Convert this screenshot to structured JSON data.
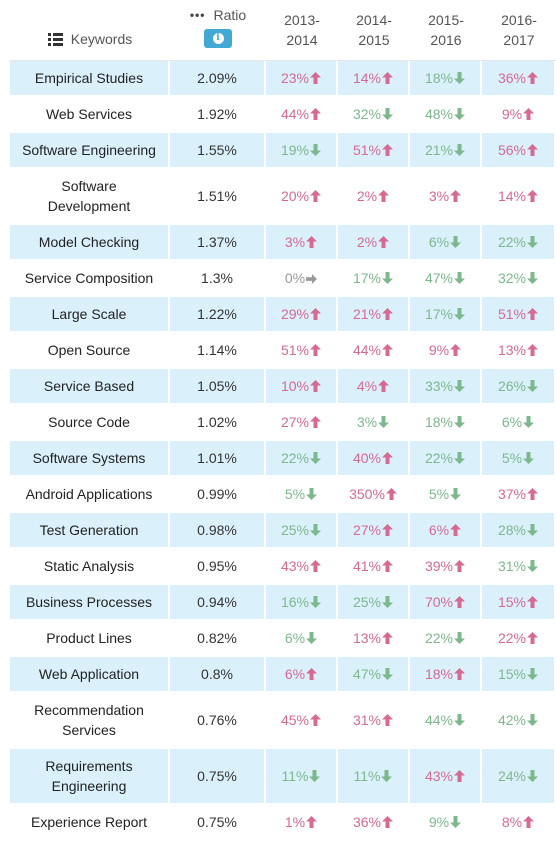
{
  "header": {
    "keywords_label": "Keywords",
    "ratio_label": "Ratio",
    "info_glyph": "i",
    "years": [
      "2013-\n2014",
      "2014-\n2015",
      "2015-\n2016",
      "2016-\n2017"
    ],
    "years_lines": [
      [
        "2013-",
        "2014"
      ],
      [
        "2014-",
        "2015"
      ],
      [
        "2015-",
        "2016"
      ],
      [
        "2016-",
        "2017"
      ]
    ]
  },
  "colors": {
    "row_alt": "#daf0fb",
    "up": "#d66a93",
    "down": "#7db88d",
    "flat": "#999999",
    "badge": "#42a8d4"
  },
  "rows": [
    {
      "kw": [
        "Empirical Studies"
      ],
      "ratio": "2.09%",
      "alt": true,
      "h": 36,
      "c": [
        [
          "23%",
          "up"
        ],
        [
          "14%",
          "up"
        ],
        [
          "18%",
          "down"
        ],
        [
          "36%",
          "up"
        ]
      ]
    },
    {
      "kw": [
        "Web Services"
      ],
      "ratio": "1.92%",
      "alt": false,
      "h": 36,
      "c": [
        [
          "44%",
          "up"
        ],
        [
          "32%",
          "down"
        ],
        [
          "48%",
          "down"
        ],
        [
          "9%",
          "up"
        ]
      ]
    },
    {
      "kw": [
        "Software Engineering"
      ],
      "ratio": "1.55%",
      "alt": true,
      "h": 36,
      "c": [
        [
          "19%",
          "down"
        ],
        [
          "51%",
          "up"
        ],
        [
          "21%",
          "down"
        ],
        [
          "56%",
          "up"
        ]
      ]
    },
    {
      "kw": [
        "Software",
        "Development"
      ],
      "ratio": "1.51%",
      "alt": false,
      "h": 56,
      "c": [
        [
          "20%",
          "up"
        ],
        [
          "2%",
          "up"
        ],
        [
          "3%",
          "up"
        ],
        [
          "14%",
          "up"
        ]
      ]
    },
    {
      "kw": [
        "Model Checking"
      ],
      "ratio": "1.37%",
      "alt": true,
      "h": 36,
      "c": [
        [
          "3%",
          "up"
        ],
        [
          "2%",
          "up"
        ],
        [
          "6%",
          "down"
        ],
        [
          "22%",
          "down"
        ]
      ]
    },
    {
      "kw": [
        "Service Composition"
      ],
      "ratio": "1.3%",
      "alt": false,
      "h": 36,
      "c": [
        [
          "0%",
          "flat"
        ],
        [
          "17%",
          "down"
        ],
        [
          "47%",
          "down"
        ],
        [
          "32%",
          "down"
        ]
      ]
    },
    {
      "kw": [
        "Large Scale"
      ],
      "ratio": "1.22%",
      "alt": true,
      "h": 36,
      "c": [
        [
          "29%",
          "up"
        ],
        [
          "21%",
          "up"
        ],
        [
          "17%",
          "down"
        ],
        [
          "51%",
          "up"
        ]
      ]
    },
    {
      "kw": [
        "Open Source"
      ],
      "ratio": "1.14%",
      "alt": false,
      "h": 36,
      "c": [
        [
          "51%",
          "up"
        ],
        [
          "44%",
          "up"
        ],
        [
          "9%",
          "up"
        ],
        [
          "13%",
          "up"
        ]
      ]
    },
    {
      "kw": [
        "Service Based"
      ],
      "ratio": "1.05%",
      "alt": true,
      "h": 36,
      "c": [
        [
          "10%",
          "up"
        ],
        [
          "4%",
          "up"
        ],
        [
          "33%",
          "down"
        ],
        [
          "26%",
          "down"
        ]
      ]
    },
    {
      "kw": [
        "Source Code"
      ],
      "ratio": "1.02%",
      "alt": false,
      "h": 36,
      "c": [
        [
          "27%",
          "up"
        ],
        [
          "3%",
          "down"
        ],
        [
          "18%",
          "down"
        ],
        [
          "6%",
          "down"
        ]
      ]
    },
    {
      "kw": [
        "Software Systems"
      ],
      "ratio": "1.01%",
      "alt": true,
      "h": 36,
      "c": [
        [
          "22%",
          "down"
        ],
        [
          "40%",
          "up"
        ],
        [
          "22%",
          "down"
        ],
        [
          "5%",
          "down"
        ]
      ]
    },
    {
      "kw": [
        "Android Applications"
      ],
      "ratio": "0.99%",
      "alt": false,
      "h": 36,
      "c": [
        [
          "5%",
          "down"
        ],
        [
          "350%",
          "up"
        ],
        [
          "5%",
          "down"
        ],
        [
          "37%",
          "up"
        ]
      ]
    },
    {
      "kw": [
        "Test Generation"
      ],
      "ratio": "0.98%",
      "alt": true,
      "h": 36,
      "c": [
        [
          "25%",
          "down"
        ],
        [
          "27%",
          "up"
        ],
        [
          "6%",
          "up"
        ],
        [
          "28%",
          "down"
        ]
      ]
    },
    {
      "kw": [
        "Static Analysis"
      ],
      "ratio": "0.95%",
      "alt": false,
      "h": 36,
      "c": [
        [
          "43%",
          "up"
        ],
        [
          "41%",
          "up"
        ],
        [
          "39%",
          "up"
        ],
        [
          "31%",
          "down"
        ]
      ]
    },
    {
      "kw": [
        "Business Processes"
      ],
      "ratio": "0.94%",
      "alt": true,
      "h": 36,
      "c": [
        [
          "16%",
          "down"
        ],
        [
          "25%",
          "down"
        ],
        [
          "70%",
          "up"
        ],
        [
          "15%",
          "up"
        ]
      ]
    },
    {
      "kw": [
        "Product Lines"
      ],
      "ratio": "0.82%",
      "alt": false,
      "h": 36,
      "c": [
        [
          "6%",
          "down"
        ],
        [
          "13%",
          "up"
        ],
        [
          "22%",
          "down"
        ],
        [
          "22%",
          "up"
        ]
      ]
    },
    {
      "kw": [
        "Web Application"
      ],
      "ratio": "0.8%",
      "alt": true,
      "h": 36,
      "c": [
        [
          "6%",
          "up"
        ],
        [
          "47%",
          "down"
        ],
        [
          "18%",
          "up"
        ],
        [
          "15%",
          "down"
        ]
      ]
    },
    {
      "kw": [
        "Recommendation",
        "Services"
      ],
      "ratio": "0.76%",
      "alt": false,
      "h": 56,
      "c": [
        [
          "45%",
          "up"
        ],
        [
          "31%",
          "up"
        ],
        [
          "44%",
          "down"
        ],
        [
          "42%",
          "down"
        ]
      ]
    },
    {
      "kw": [
        "Requirements",
        "Engineering"
      ],
      "ratio": "0.75%",
      "alt": true,
      "h": 56,
      "c": [
        [
          "11%",
          "down"
        ],
        [
          "11%",
          "down"
        ],
        [
          "43%",
          "up"
        ],
        [
          "24%",
          "down"
        ]
      ]
    },
    {
      "kw": [
        "Experience Report"
      ],
      "ratio": "0.75%",
      "alt": false,
      "h": 36,
      "c": [
        [
          "1%",
          "up"
        ],
        [
          "36%",
          "up"
        ],
        [
          "9%",
          "down"
        ],
        [
          "8%",
          "up"
        ]
      ]
    }
  ]
}
